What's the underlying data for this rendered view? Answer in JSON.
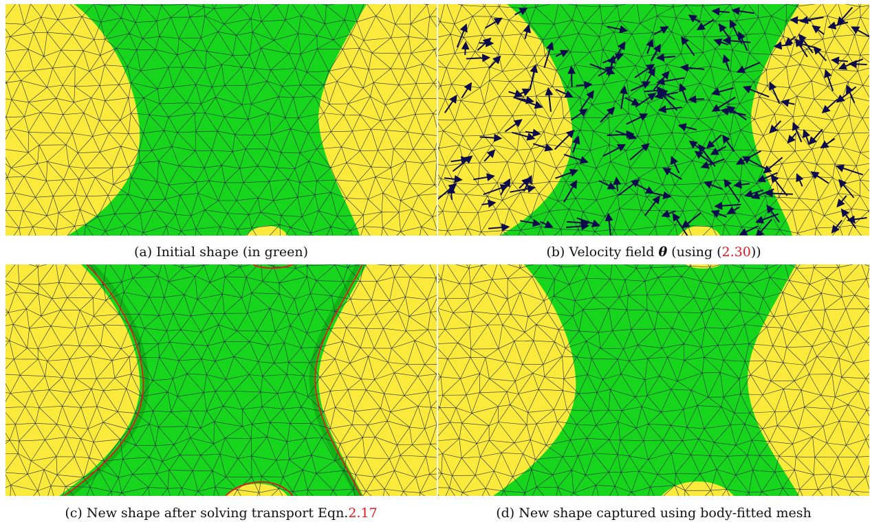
{
  "colors": {
    "domain_yellow": "#fbe93b",
    "shape_green": "#17d51c",
    "mesh_line": "#1f2a44",
    "arrow": "#0b0b4d",
    "boundary_red": "#e8141b",
    "reference_red": "#e8141b"
  },
  "figures": [
    {
      "id": "a",
      "caption": {
        "label": "(a) Initial shape (in green)"
      }
    },
    {
      "id": "b",
      "caption": {
        "prefix": "(b) Velocity field ",
        "symbol": "θ",
        "middle": " (using (",
        "ref": "2.30",
        "suffix": "))"
      }
    },
    {
      "id": "c",
      "caption": {
        "prefix": "(c) New shape after solving transport Eqn.",
        "ref": "2.17"
      }
    },
    {
      "id": "d",
      "caption": {
        "label": "(d) New shape captured using body-fitted mesh"
      }
    }
  ]
}
